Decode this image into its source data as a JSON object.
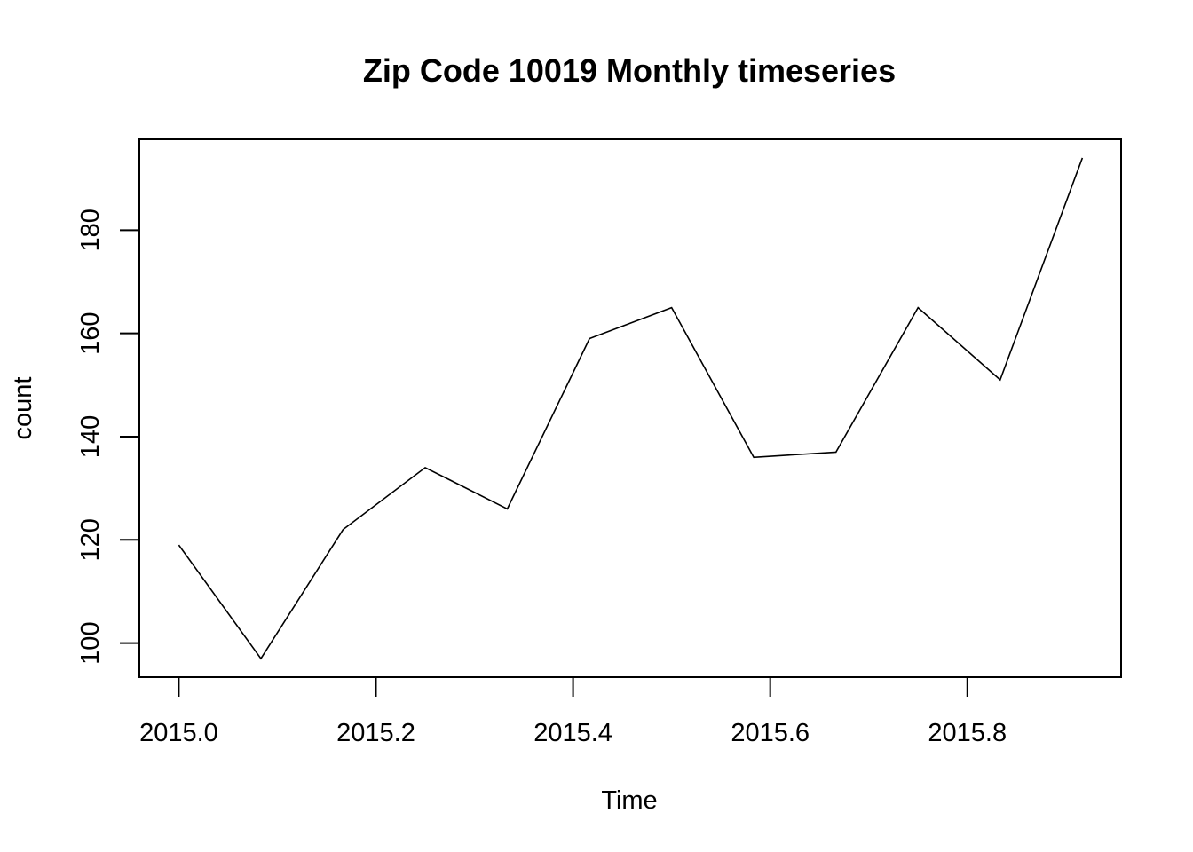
{
  "chart_data": {
    "type": "line",
    "title": "Zip Code 10019 Monthly timeseries",
    "xlabel": "Time",
    "ylabel": "count",
    "x": [
      2015.0,
      2015.0833,
      2015.1667,
      2015.25,
      2015.3333,
      2015.4167,
      2015.5,
      2015.5833,
      2015.6667,
      2015.75,
      2015.8333,
      2015.9167
    ],
    "series": [
      {
        "values": [
          119,
          97,
          122,
          134,
          126,
          159,
          165,
          136,
          137,
          165,
          151,
          194
        ]
      }
    ],
    "xlim": [
      2014.96,
      2015.956
    ],
    "ylim": [
      93.4,
      197.6
    ],
    "xticks": [
      2015.0,
      2015.2,
      2015.4,
      2015.6,
      2015.8
    ],
    "xtick_labels": [
      "2015.0",
      "2015.2",
      "2015.4",
      "2015.6",
      "2015.8"
    ],
    "yticks": [
      100,
      120,
      140,
      160,
      180
    ],
    "ytick_labels": [
      "100",
      "120",
      "140",
      "160",
      "180"
    ],
    "grid": false,
    "line_color": "#000000"
  }
}
